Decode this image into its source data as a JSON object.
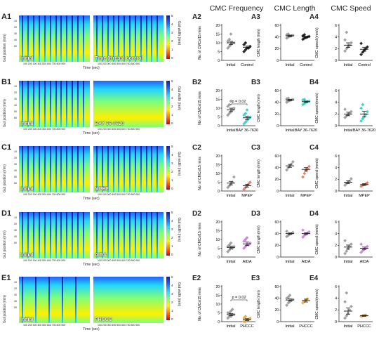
{
  "column_titles": [
    "CMC Frequency",
    "CMC Length",
    "CMC Speed"
  ],
  "heatmap_common": {
    "y_axis_label": "Gut position (mm)",
    "x_axis_label": "Time (sec)",
    "colorbar_label": "Gut width (mm)",
    "x_ticks": "100 200 300 400 500 600 700 800 900",
    "colorbar_ticks": [
      "5",
      "4",
      "3",
      "2",
      "1",
      "0"
    ],
    "colormap": [
      "#1a1aa0",
      "#1f60ff",
      "#22d4ff",
      "#7cff7c",
      "#fff000",
      "#ff7a00",
      "#d40000"
    ]
  },
  "rows": [
    {
      "id": "A",
      "heatmap_label": "A1",
      "left_caption": "Initial",
      "right_caption": "Time (Krebs) control",
      "y_ticks": [
        "10",
        "20",
        "30",
        "40",
        "50"
      ],
      "panels": [
        {
          "label": "A2",
          "ylabel": "No. of CMCs/15 mins",
          "yticks": [
            "0",
            "5",
            "10",
            "15",
            "20"
          ],
          "ymax": 20,
          "groups": [
            "Initial",
            "Control"
          ],
          "points": [
            [
              7,
              8,
              9,
              10,
              10,
              11,
              12,
              15
            ],
            [
              5,
              6,
              7,
              7,
              8,
              9,
              10
            ]
          ],
          "means": [
            10,
            7.5
          ],
          "sem": [
            1,
            0.8
          ],
          "colors": [
            "#999999",
            "#111111"
          ],
          "marker": [
            "diamond",
            "diamond"
          ],
          "pval": ""
        },
        {
          "label": "A3",
          "ylabel": "CMC length (mm)",
          "yticks": [
            "0",
            "20",
            "40",
            "60"
          ],
          "ymax": 60,
          "groups": [
            "Initial",
            "Control"
          ],
          "points": [
            [
              38,
              40,
              41,
              42,
              43,
              44,
              45
            ],
            [
              36,
              38,
              39,
              40,
              41,
              42,
              44
            ]
          ],
          "means": [
            42,
            40
          ],
          "sem": [
            1.2,
            1.2
          ],
          "colors": [
            "#999999",
            "#111111"
          ],
          "marker": [
            "diamond",
            "diamond"
          ],
          "pval": ""
        },
        {
          "label": "A4",
          "ylabel": "CMC speed (mm/s)",
          "yticks": [
            "0",
            "2",
            "4",
            "6"
          ],
          "ymax": 6,
          "groups": [
            "Initial",
            "Control"
          ],
          "points": [
            [
              1.6,
              2,
              2.3,
              2.6,
              3,
              3.5,
              4.8
            ],
            [
              1.0,
              1.4,
              1.7,
              2,
              2.3,
              2.9
            ]
          ],
          "means": [
            2.6,
            1.9
          ],
          "sem": [
            0.4,
            0.35
          ],
          "colors": [
            "#999999",
            "#111111"
          ],
          "marker": [
            "diamond",
            "diamond"
          ],
          "pval": ""
        }
      ]
    },
    {
      "id": "B",
      "heatmap_label": "B1",
      "left_caption": "Initial",
      "right_caption": "BAY 36-7620",
      "y_ticks": [
        "10",
        "20",
        "30",
        "40",
        "50",
        "60"
      ],
      "panels": [
        {
          "label": "B2",
          "ylabel": "No. of CMCs/15 mins",
          "yticks": [
            "0",
            "5",
            "10",
            "15",
            "20"
          ],
          "ymax": 20,
          "groups": [
            "Initial",
            "BAY 36-7620"
          ],
          "points": [
            [
              6,
              7,
              8,
              9,
              10,
              11,
              12,
              14
            ],
            [
              1,
              2,
              3,
              4,
              5,
              6,
              7,
              9
            ]
          ],
          "means": [
            9,
            4.5
          ],
          "sem": [
            1,
            1
          ],
          "colors": [
            "#999999",
            "#2ad1c4"
          ],
          "marker": [
            "diamond",
            "diamond"
          ],
          "pval": "p = 0.02"
        },
        {
          "label": "B3",
          "ylabel": "CMC length (mm)",
          "yticks": [
            "0",
            "20",
            "40",
            "60"
          ],
          "ymax": 60,
          "groups": [
            "Initial",
            "BAY 36-7620"
          ],
          "points": [
            [
              40,
              42,
              43,
              44,
              45,
              46,
              47
            ],
            [
              36,
              38,
              40,
              41,
              42,
              44,
              45
            ]
          ],
          "means": [
            44,
            41
          ],
          "sem": [
            1,
            1.2
          ],
          "colors": [
            "#999999",
            "#2ad1c4"
          ],
          "marker": [
            "diamond",
            "diamond"
          ],
          "pval": ""
        },
        {
          "label": "B4",
          "ylabel": "CMC speed (mm/s)",
          "yticks": [
            "0",
            "2",
            "4",
            "6"
          ],
          "ymax": 6,
          "groups": [
            "Initial",
            "BAY 36-7620"
          ],
          "points": [
            [
              1.4,
              1.7,
              1.9,
              2.1,
              2.4,
              2.8
            ],
            [
              0.8,
              1.2,
              1.5,
              1.9,
              2.4,
              3,
              3.6
            ]
          ],
          "means": [
            2.0,
            2.0
          ],
          "sem": [
            0.3,
            0.45
          ],
          "colors": [
            "#999999",
            "#2ad1c4"
          ],
          "marker": [
            "diamond",
            "diamond"
          ],
          "pval": ""
        }
      ]
    },
    {
      "id": "C",
      "heatmap_label": "C1",
      "left_caption": "Initial",
      "right_caption": "MPEP",
      "y_ticks": [
        "10",
        "20",
        "30",
        "40",
        "50",
        "60"
      ],
      "panels": [
        {
          "label": "C2",
          "ylabel": "No. of CMCs/15 mins",
          "yticks": [
            "0",
            "5",
            "10",
            "15",
            "20"
          ],
          "ymax": 20,
          "groups": [
            "Initial",
            "MPEP"
          ],
          "points": [
            [
              2,
              3,
              4,
              5,
              8
            ],
            [
              1,
              2,
              3,
              4,
              5
            ]
          ],
          "means": [
            4.5,
            3
          ],
          "sem": [
            1,
            0.8
          ],
          "colors": [
            "#999999",
            "#e0735a"
          ],
          "marker": [
            "diamond",
            "diamond"
          ],
          "pval": ""
        },
        {
          "label": "C3",
          "ylabel": "CMC length (mm)",
          "yticks": [
            "0",
            "20",
            "40",
            "60"
          ],
          "ymax": 60,
          "groups": [
            "Initial",
            "MPEP"
          ],
          "points": [
            [
              36,
              40,
              43,
              46,
              50
            ],
            [
              24,
              30,
              35,
              38,
              42
            ]
          ],
          "means": [
            43,
            37
          ],
          "sem": [
            2.5,
            3
          ],
          "colors": [
            "#999999",
            "#e0735a"
          ],
          "marker": [
            "diamond",
            "diamond"
          ],
          "pval": ""
        },
        {
          "label": "C4",
          "ylabel": "CMC speed (mm/s)",
          "yticks": [
            "0",
            "2",
            "4",
            "6"
          ],
          "ymax": 6,
          "groups": [
            "Initial",
            "MPEP"
          ],
          "points": [
            [
              1.0,
              1.3,
              1.5,
              1.7,
              2.1
            ],
            [
              0.8,
              1.0,
              1.1,
              1.2,
              1.4
            ]
          ],
          "means": [
            1.5,
            1.1
          ],
          "sem": [
            0.25,
            0.15
          ],
          "colors": [
            "#999999",
            "#e0735a"
          ],
          "marker": [
            "diamond",
            "diamond"
          ],
          "pval": ""
        }
      ]
    },
    {
      "id": "D",
      "heatmap_label": "D1",
      "left_caption": "Initial",
      "right_caption": "AIDA",
      "y_ticks": [
        "10",
        "20",
        "30",
        "40",
        "50"
      ],
      "panels": [
        {
          "label": "D2",
          "ylabel": "No. of CMCs/15 mins",
          "yticks": [
            "0",
            "5",
            "10",
            "15",
            "20"
          ],
          "ymax": 20,
          "groups": [
            "Initial",
            "AIDA"
          ],
          "points": [
            [
              3,
              4,
              5,
              5,
              6,
              6,
              7,
              8
            ],
            [
              5,
              6,
              7,
              7,
              8,
              9,
              10,
              11
            ]
          ],
          "means": [
            5.5,
            7.5
          ],
          "sem": [
            0.8,
            1
          ],
          "colors": [
            "#999999",
            "#c77dd6"
          ],
          "marker": [
            "diamond",
            "diamond"
          ],
          "pval": ""
        },
        {
          "label": "D3",
          "ylabel": "CMC length (mm)",
          "yticks": [
            "0",
            "20",
            "40",
            "60"
          ],
          "ymax": 60,
          "groups": [
            "Initial",
            "AIDA"
          ],
          "points": [
            [
              35,
              37,
              39,
              40,
              42,
              44
            ],
            [
              34,
              37,
              39,
              41,
              43,
              46
            ]
          ],
          "means": [
            40,
            40
          ],
          "sem": [
            1.2,
            1.5
          ],
          "colors": [
            "#999999",
            "#c77dd6"
          ],
          "marker": [
            "diamond",
            "diamond"
          ],
          "pval": ""
        },
        {
          "label": "D4",
          "ylabel": "CMC speed (mm/s)",
          "yticks": [
            "0",
            "2",
            "4",
            "6"
          ],
          "ymax": 6,
          "groups": [
            "Initial",
            "AIDA"
          ],
          "points": [
            [
              0.6,
              1.0,
              1.4,
              1.8,
              2.2,
              2.8
            ],
            [
              0.8,
              1.1,
              1.3,
              1.5,
              1.8,
              2.2
            ]
          ],
          "means": [
            1.7,
            1.5
          ],
          "sem": [
            0.35,
            0.2
          ],
          "colors": [
            "#999999",
            "#c77dd6"
          ],
          "marker": [
            "diamond",
            "diamond"
          ],
          "pval": ""
        }
      ]
    },
    {
      "id": "E",
      "heatmap_label": "E1",
      "left_caption": "Initial",
      "right_caption": "PHCCC",
      "y_ticks": [
        "10",
        "20",
        "30",
        "40",
        "50"
      ],
      "panels": [
        {
          "label": "E2",
          "ylabel": "No. of CMCs/15 mins",
          "yticks": [
            "0",
            "5",
            "10",
            "15",
            "20"
          ],
          "ymax": 20,
          "groups": [
            "Initial",
            "PHCCC"
          ],
          "points": [
            [
              2,
              3,
              3,
              4,
              4,
              5,
              5,
              6,
              7
            ],
            [
              0,
              0,
              1,
              1,
              2,
              2,
              3
            ]
          ],
          "means": [
            4,
            1.2
          ],
          "sem": [
            0.6,
            0.5
          ],
          "colors": [
            "#999999",
            "#e8a33a"
          ],
          "marker": [
            "diamond",
            "diamond"
          ],
          "pval": "p = 0.02"
        },
        {
          "label": "E3",
          "ylabel": "CMC length (mm)",
          "yticks": [
            "0",
            "20",
            "40",
            "60"
          ],
          "ymax": 60,
          "groups": [
            "Initial",
            "PHCCC"
          ],
          "points": [
            [
              28,
              32,
              34,
              36,
              38,
              40,
              42,
              45
            ],
            [
              32,
              35,
              37,
              39
            ]
          ],
          "means": [
            37,
            36
          ],
          "sem": [
            1.8,
            2.5
          ],
          "colors": [
            "#999999",
            "#e8a33a"
          ],
          "marker": [
            "diamond",
            "diamond"
          ],
          "pval": ""
        },
        {
          "label": "E4",
          "ylabel": "CMC speed (mm/s)",
          "yticks": [
            "0",
            "2",
            "4",
            "6"
          ],
          "ymax": 6,
          "groups": [
            "Initial",
            "PHCCC"
          ],
          "points": [
            [
              0.6,
              1.0,
              1.4,
              2.0,
              2.6,
              3.4,
              4.9
            ],
            [
              0.9,
              1.0,
              1.05,
              1.1
            ]
          ],
          "means": [
            1.8,
            1.0
          ],
          "sem": [
            0.55,
            0.1
          ],
          "colors": [
            "#999999",
            "#e8a33a"
          ],
          "marker": [
            "diamond",
            "diamond"
          ],
          "pval": ""
        }
      ]
    }
  ],
  "chart_data": [
    {
      "type": "scatter",
      "panel": "A2",
      "categories": [
        "Initial",
        "Control"
      ],
      "ylabel": "No. of CMCs/15 mins",
      "ylim": [
        0,
        20
      ]
    },
    {
      "type": "scatter",
      "panel": "A3",
      "categories": [
        "Initial",
        "Control"
      ],
      "ylabel": "CMC length (mm)",
      "ylim": [
        0,
        60
      ]
    },
    {
      "type": "scatter",
      "panel": "A4",
      "categories": [
        "Initial",
        "Control"
      ],
      "ylabel": "CMC speed (mm/s)",
      "ylim": [
        0,
        6
      ]
    },
    {
      "type": "scatter",
      "panel": "B2",
      "categories": [
        "Initial",
        "BAY 36-7620"
      ],
      "ylabel": "No. of CMCs/15 mins",
      "ylim": [
        0,
        20
      ],
      "annotation": "p = 0.02"
    },
    {
      "type": "scatter",
      "panel": "B3",
      "categories": [
        "Initial",
        "BAY 36-7620"
      ],
      "ylabel": "CMC length (mm)",
      "ylim": [
        0,
        60
      ]
    },
    {
      "type": "scatter",
      "panel": "B4",
      "categories": [
        "Initial",
        "BAY 36-7620"
      ],
      "ylabel": "CMC speed (mm/s)",
      "ylim": [
        0,
        6
      ]
    },
    {
      "type": "scatter",
      "panel": "C2",
      "categories": [
        "Initial",
        "MPEP"
      ],
      "ylabel": "No. of CMCs/15 mins",
      "ylim": [
        0,
        20
      ]
    },
    {
      "type": "scatter",
      "panel": "C3",
      "categories": [
        "Initial",
        "MPEP"
      ],
      "ylabel": "CMC length (mm)",
      "ylim": [
        0,
        60
      ]
    },
    {
      "type": "scatter",
      "panel": "C4",
      "categories": [
        "Initial",
        "MPEP"
      ],
      "ylabel": "CMC speed (mm/s)",
      "ylim": [
        0,
        6
      ]
    },
    {
      "type": "scatter",
      "panel": "D2",
      "categories": [
        "Initial",
        "AIDA"
      ],
      "ylabel": "No. of CMCs/15 mins",
      "ylim": [
        0,
        20
      ]
    },
    {
      "type": "scatter",
      "panel": "D3",
      "categories": [
        "Initial",
        "AIDA"
      ],
      "ylabel": "CMC length (mm)",
      "ylim": [
        0,
        60
      ]
    },
    {
      "type": "scatter",
      "panel": "D4",
      "categories": [
        "Initial",
        "AIDA"
      ],
      "ylabel": "CMC speed (mm/s)",
      "ylim": [
        0,
        6
      ]
    },
    {
      "type": "scatter",
      "panel": "E2",
      "categories": [
        "Initial",
        "PHCCC"
      ],
      "ylabel": "No. of CMCs/15 mins",
      "ylim": [
        0,
        20
      ],
      "annotation": "p = 0.02"
    },
    {
      "type": "scatter",
      "panel": "E3",
      "categories": [
        "Initial",
        "PHCCC"
      ],
      "ylabel": "CMC length (mm)",
      "ylim": [
        0,
        60
      ]
    },
    {
      "type": "scatter",
      "panel": "E4",
      "categories": [
        "Initial",
        "PHCCC"
      ],
      "ylabel": "CMC speed (mm/s)",
      "ylim": [
        0,
        6
      ]
    }
  ]
}
